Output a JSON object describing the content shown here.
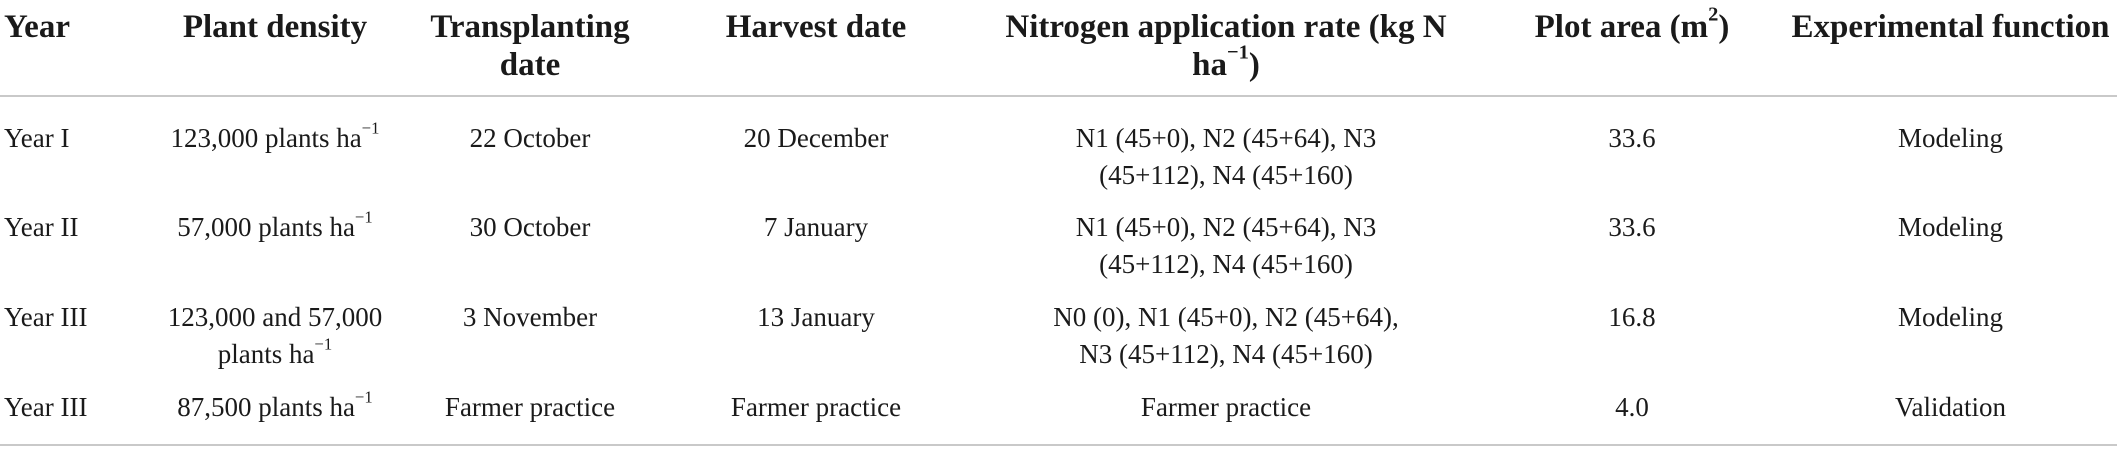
{
  "table": {
    "headers": {
      "year": "Year",
      "plant_density": "Plant density",
      "transplanting_date": "Transplanting date",
      "harvest_date": "Harvest date",
      "nitrogen_rate": "Nitrogen application rate (kg N ha",
      "nitrogen_rate_sup": "−1",
      "nitrogen_rate_end": ")",
      "plot_area": "Plot area (m",
      "plot_area_sup": "2",
      "plot_area_end": ")",
      "experimental_function": "Experimental function"
    },
    "rows": [
      {
        "year": "Year I",
        "plant_density": "123,000 plants ha",
        "plant_density_sup": "−1",
        "transplanting_date": "22 October",
        "harvest_date": "20 December",
        "nitrogen_rate": "N1 (45+0), N2 (45+64), N3 (45+112), N4 (45+160)",
        "plot_area": "33.6",
        "experimental_function": "Modeling"
      },
      {
        "year": "Year II",
        "plant_density": "57,000 plants ha",
        "plant_density_sup": "−1",
        "transplanting_date": "30 October",
        "harvest_date": "7 January",
        "nitrogen_rate": "N1 (45+0), N2 (45+64), N3 (45+112), N4 (45+160)",
        "plot_area": "33.6",
        "experimental_function": "Modeling"
      },
      {
        "year": "Year III",
        "plant_density": "123,000 and 57,000 plants ha",
        "plant_density_sup": "−1",
        "transplanting_date": "3 November",
        "harvest_date": "13 January",
        "nitrogen_rate": "N0 (0), N1 (45+0), N2 (45+64), N3 (45+112), N4 (45+160)",
        "plot_area": "16.8",
        "experimental_function": "Modeling"
      },
      {
        "year": "Year III",
        "plant_density": "87,500 plants ha",
        "plant_density_sup": "−1",
        "transplanting_date": "Farmer practice",
        "harvest_date": "Farmer practice",
        "nitrogen_rate": "Farmer practice",
        "plot_area": "4.0",
        "experimental_function": "Validation"
      }
    ]
  }
}
